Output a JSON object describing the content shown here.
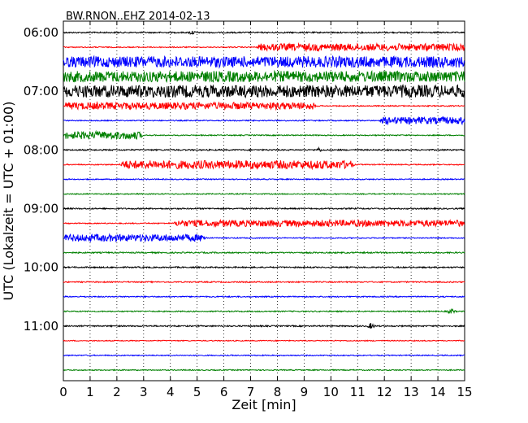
{
  "chart_data": {
    "type": "line",
    "title": "BW.RNON..EHZ 2014-02-13",
    "xlabel": "Zeit  [min]",
    "ylabel": "UTC (Lokalzeit = UTC + 01:00)",
    "xlim": [
      0,
      15
    ],
    "x_ticks": [
      "0",
      "1",
      "2",
      "3",
      "4",
      "5",
      "6",
      "7",
      "8",
      "9",
      "10",
      "11",
      "12",
      "13",
      "14",
      "15"
    ],
    "y_ticks": [
      "06:00",
      "07:00",
      "08:00",
      "09:00",
      "10:00",
      "11:00"
    ],
    "grid": "vertical dotted",
    "color_cycle": [
      "#000000",
      "#ff0000",
      "#0000ff",
      "#008000"
    ],
    "traces": [
      {
        "start": "06:00",
        "color": "#000000",
        "noise": 0.1,
        "events": [
          {
            "t0": 4.6,
            "t1": 5.0,
            "amp": 0.45,
            "kind": "spike"
          }
        ]
      },
      {
        "start": "06:15",
        "color": "#ff0000",
        "noise": 0.08,
        "events": [
          {
            "t0": 7.2,
            "t1": 15.0,
            "amp": 0.55,
            "kind": "onset"
          }
        ]
      },
      {
        "start": "06:30",
        "color": "#0000ff",
        "noise": 0.85,
        "events": []
      },
      {
        "start": "06:45",
        "color": "#008000",
        "noise": 0.85,
        "events": []
      },
      {
        "start": "07:00",
        "color": "#000000",
        "noise": 0.95,
        "events": []
      },
      {
        "start": "07:15",
        "color": "#ff0000",
        "noise": 0.08,
        "events": [
          {
            "t0": 0.0,
            "t1": 9.5,
            "amp": 0.55,
            "kind": "block"
          }
        ]
      },
      {
        "start": "07:30",
        "color": "#0000ff",
        "noise": 0.08,
        "events": [
          {
            "t0": 11.8,
            "t1": 15.0,
            "amp": 0.55,
            "kind": "onset"
          }
        ]
      },
      {
        "start": "07:45",
        "color": "#008000",
        "noise": 0.08,
        "events": [
          {
            "t0": 0.0,
            "t1": 3.0,
            "amp": 0.6,
            "kind": "block"
          }
        ]
      },
      {
        "start": "08:00",
        "color": "#000000",
        "noise": 0.1,
        "events": [
          {
            "t0": 9.4,
            "t1": 9.7,
            "amp": 0.45,
            "kind": "spike"
          }
        ]
      },
      {
        "start": "08:15",
        "color": "#ff0000",
        "noise": 0.08,
        "events": [
          {
            "t0": 2.1,
            "t1": 10.9,
            "amp": 0.65,
            "kind": "block"
          }
        ]
      },
      {
        "start": "08:30",
        "color": "#0000ff",
        "noise": 0.08,
        "events": []
      },
      {
        "start": "08:45",
        "color": "#008000",
        "noise": 0.08,
        "events": []
      },
      {
        "start": "09:00",
        "color": "#000000",
        "noise": 0.1,
        "events": []
      },
      {
        "start": "09:15",
        "color": "#ff0000",
        "noise": 0.08,
        "events": [
          {
            "t0": 4.1,
            "t1": 15.0,
            "amp": 0.5,
            "kind": "onset"
          }
        ]
      },
      {
        "start": "09:30",
        "color": "#0000ff",
        "noise": 0.08,
        "events": [
          {
            "t0": 0.0,
            "t1": 5.4,
            "amp": 0.55,
            "kind": "block"
          }
        ]
      },
      {
        "start": "09:45",
        "color": "#008000",
        "noise": 0.1,
        "events": []
      },
      {
        "start": "10:00",
        "color": "#000000",
        "noise": 0.1,
        "events": []
      },
      {
        "start": "10:15",
        "color": "#ff0000",
        "noise": 0.09,
        "events": []
      },
      {
        "start": "10:30",
        "color": "#0000ff",
        "noise": 0.09,
        "events": []
      },
      {
        "start": "10:45",
        "color": "#008000",
        "noise": 0.09,
        "events": [
          {
            "t0": 14.3,
            "t1": 14.7,
            "amp": 0.5,
            "kind": "spike"
          }
        ]
      },
      {
        "start": "11:00",
        "color": "#000000",
        "noise": 0.1,
        "events": [
          {
            "t0": 11.3,
            "t1": 11.7,
            "amp": 0.5,
            "kind": "spike"
          }
        ]
      },
      {
        "start": "11:15",
        "color": "#ff0000",
        "noise": 0.07,
        "events": []
      },
      {
        "start": "11:30",
        "color": "#0000ff",
        "noise": 0.08,
        "events": []
      },
      {
        "start": "11:45",
        "color": "#008000",
        "noise": 0.08,
        "events": []
      }
    ]
  }
}
